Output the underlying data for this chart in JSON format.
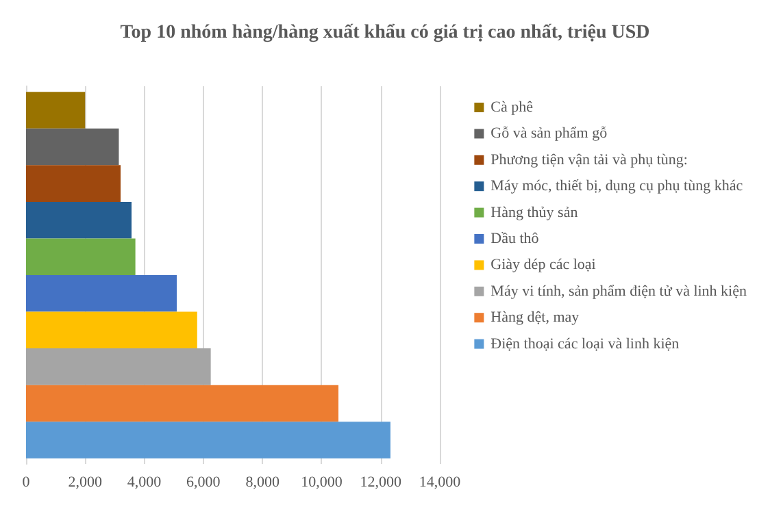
{
  "chart_data": {
    "type": "bar",
    "title": "Top 10 nhóm hàng/hàng xuất khẩu có giá trị cao nhất, triệu USD",
    "orientation": "horizontal",
    "categories": [
      null
    ],
    "series": [
      {
        "name": "Cà phê",
        "color": "#997300",
        "values": [
          2000
        ]
      },
      {
        "name": "Gỗ và sản phẩm gỗ",
        "color": "#636363",
        "values": [
          3140
        ]
      },
      {
        "name": "Phương tiện vận tải và phụ tùng:",
        "color": "#9e480e",
        "values": [
          3200
        ]
      },
      {
        "name": "Máy móc, thiết bị, dụng cụ phụ tùng khác",
        "color": "#255e91",
        "values": [
          3570
        ]
      },
      {
        "name": "Hàng thủy sản",
        "color": "#70ad47",
        "values": [
          3700
        ]
      },
      {
        "name": "Dầu thô",
        "color": "#4472c4",
        "values": [
          5100
        ]
      },
      {
        "name": "Giày dép các loại",
        "color": "#ffc000",
        "values": [
          5790
        ]
      },
      {
        "name": "Máy vi tính, sản phẩm điện tử và linh kiện",
        "color": "#a5a5a5",
        "values": [
          6250
        ]
      },
      {
        "name": "Hàng dệt, may",
        "color": "#ed7d31",
        "values": [
          10570
        ]
      },
      {
        "name": "Điện thoại các loại và linh kiện",
        "color": "#5b9bd5",
        "values": [
          12330
        ]
      }
    ],
    "xlim": [
      0,
      14000
    ],
    "xticks": [
      0,
      {
        "value": 2000,
        "label": "2,000"
      },
      {
        "value": 4000,
        "label": "4,000"
      },
      {
        "value": 6000,
        "label": "6,000"
      },
      {
        "value": 8000,
        "label": "8,000"
      },
      {
        "value": 10000,
        "label": "10,000"
      },
      {
        "value": 12000,
        "label": "12,000"
      },
      {
        "value": 14000,
        "label": "14,000"
      }
    ],
    "grid": "x",
    "legend": "right"
  }
}
